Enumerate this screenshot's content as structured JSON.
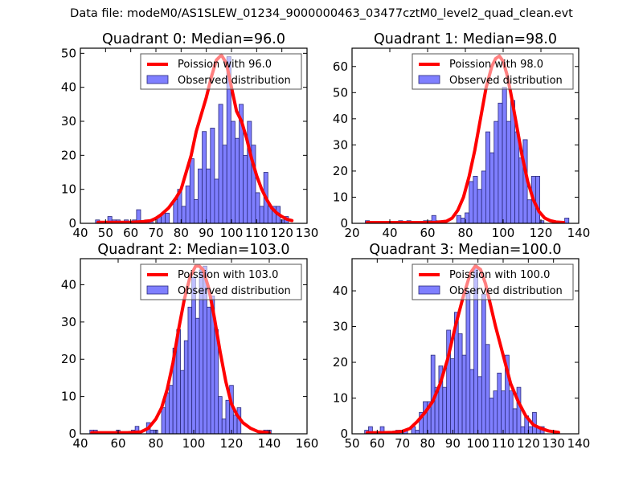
{
  "suptitle": "Data file: modeM0/AS1SLEW_01234_9000000463_03477cztM0_level2_quad_clean.evt",
  "colors": {
    "bar_fill": "#7f7fff",
    "bar_edge": "#2a2a7a",
    "poisson_line": "#ff0000"
  },
  "chart_data": [
    {
      "type": "bar",
      "title": "Quadrant 0: Median=96.0",
      "xlim": [
        40,
        130
      ],
      "ylim": [
        0,
        51.5
      ],
      "xticks": [
        40,
        50,
        60,
        70,
        80,
        90,
        100,
        110,
        120,
        130
      ],
      "yticks": [
        0,
        10,
        20,
        30,
        40,
        50
      ],
      "legend": {
        "placement": "top-right",
        "entries": [
          "Poission with 96.0",
          "Observed distribution"
        ]
      },
      "bin_start": 46,
      "bin_width": 1.63,
      "values": [
        1,
        0,
        0,
        2,
        1,
        1,
        0,
        1,
        0,
        1,
        4,
        0,
        1,
        1,
        0,
        2,
        3,
        3,
        0,
        7,
        10,
        5,
        11,
        19,
        7,
        16,
        27,
        16,
        28,
        13,
        35,
        23,
        49,
        30,
        25,
        35,
        20,
        30,
        23,
        9,
        5,
        15,
        5,
        5,
        5,
        1,
        2
      ],
      "poisson": {
        "mean": 96.0,
        "peak": 49.5,
        "x": [
          47,
          55,
          60,
          65,
          68,
          70,
          72,
          75,
          78,
          80,
          82,
          84,
          86,
          88,
          90,
          92,
          94,
          96,
          98,
          100,
          102,
          104,
          106,
          108,
          110,
          112,
          114,
          116,
          118,
          120,
          122,
          124
        ],
        "y": [
          0.3,
          0.3,
          0.3,
          0.5,
          0.8,
          1.5,
          2.5,
          4.5,
          7.5,
          10,
          15,
          20,
          27,
          32,
          37,
          43,
          48,
          49.5,
          47,
          40,
          33,
          30,
          25,
          19,
          14,
          10,
          7,
          4.5,
          3,
          2,
          1.2,
          0.8
        ]
      }
    },
    {
      "type": "bar",
      "title": "Quadrant 1: Median=98.0",
      "xlim": [
        20,
        140
      ],
      "ylim": [
        0,
        67
      ],
      "xticks": [
        20,
        40,
        60,
        80,
        100,
        120,
        140
      ],
      "yticks": [
        0,
        10,
        20,
        30,
        40,
        50,
        60
      ],
      "legend": {
        "placement": "top-right",
        "entries": [
          "Poission with 98.0",
          "Observed distribution"
        ]
      },
      "bin_start": 27,
      "bin_width": 2.2,
      "values": [
        1,
        0,
        0,
        0,
        0,
        0,
        0,
        0,
        1,
        0,
        1,
        0,
        0,
        0,
        1,
        1,
        3,
        1,
        0,
        0,
        0,
        0,
        3,
        2,
        4,
        16,
        18,
        13,
        20,
        35,
        27,
        39,
        46,
        52,
        39,
        47,
        35,
        25,
        32,
        9,
        18,
        18,
        1,
        0,
        0,
        0,
        0,
        0,
        2
      ],
      "poisson": {
        "mean": 98.0,
        "peak": 64,
        "x": [
          28,
          40,
          50,
          60,
          65,
          70,
          73,
          76,
          79,
          82,
          85,
          88,
          91,
          94,
          96,
          98,
          100,
          102,
          104,
          107,
          110,
          113,
          116,
          119,
          122,
          125,
          128,
          132
        ],
        "y": [
          0.3,
          0.3,
          0.3,
          0.3,
          0.4,
          0.8,
          2,
          5,
          10,
          18,
          28,
          40,
          52,
          60,
          63,
          64,
          62,
          57,
          50,
          38,
          26,
          16,
          9,
          4.5,
          2,
          1,
          0.5,
          0.3
        ]
      }
    },
    {
      "type": "bar",
      "title": "Quadrant 2: Median=103.0",
      "xlim": [
        40,
        160
      ],
      "ylim": [
        0,
        47
      ],
      "xticks": [
        40,
        60,
        80,
        100,
        120,
        140,
        160
      ],
      "yticks": [
        0,
        10,
        20,
        30,
        40
      ],
      "legend": {
        "placement": "top-right",
        "entries": [
          "Poission with 103.0",
          "Observed distribution"
        ]
      },
      "bin_start": 45,
      "bin_width": 2.0,
      "values": [
        1,
        1,
        0,
        0,
        0,
        0,
        0,
        1,
        0,
        0,
        0,
        1,
        2,
        0,
        0,
        3,
        1,
        1,
        0,
        7,
        11,
        13,
        23,
        28,
        17,
        25,
        34,
        42,
        31,
        44,
        45,
        34,
        37,
        28,
        10,
        4,
        9,
        13,
        5,
        7,
        0,
        0,
        0,
        0,
        0,
        0,
        1,
        1
      ],
      "poisson": {
        "mean": 103.0,
        "peak": 45,
        "x": [
          46,
          55,
          65,
          72,
          76,
          80,
          83,
          86,
          89,
          92,
          95,
          98,
          101,
          103,
          105,
          108,
          111,
          114,
          117,
          120,
          123,
          126,
          130,
          134,
          140
        ],
        "y": [
          0.3,
          0.3,
          0.3,
          0.5,
          1.5,
          4,
          7,
          12,
          19,
          28,
          36,
          42,
          45,
          45,
          44,
          39,
          31,
          22,
          14,
          8,
          5,
          3,
          1.5,
          0.6,
          0.3
        ]
      }
    },
    {
      "type": "bar",
      "title": "Quadrant 3: Median=100.0",
      "xlim": [
        50,
        140
      ],
      "ylim": [
        0,
        49
      ],
      "xticks": [
        50,
        60,
        70,
        80,
        90,
        100,
        110,
        120,
        130,
        140
      ],
      "yticks": [
        0,
        10,
        20,
        30,
        40
      ],
      "legend": {
        "placement": "top-right",
        "entries": [
          "Poission with 100.0",
          "Observed distribution"
        ]
      },
      "bin_start": 55,
      "bin_width": 1.55,
      "values": [
        1,
        2,
        0,
        0,
        2,
        0,
        0,
        0,
        1,
        1,
        1,
        0,
        2,
        1,
        6,
        9,
        9,
        22,
        13,
        19,
        13,
        29,
        21,
        34,
        28,
        22,
        40,
        18,
        47,
        16,
        39,
        25,
        10,
        12,
        17,
        12,
        22,
        12,
        7,
        13,
        2,
        5,
        2,
        6,
        2,
        2,
        0
      ],
      "poisson": {
        "mean": 100.0,
        "peak": 47,
        "x": [
          56,
          62,
          66,
          70,
          73,
          76,
          79,
          82,
          85,
          88,
          91,
          94,
          97,
          99,
          101,
          103,
          105,
          107,
          110,
          113,
          116,
          119,
          122,
          125,
          128,
          132
        ],
        "y": [
          0.3,
          0.3,
          0.4,
          0.7,
          1.5,
          3.5,
          6,
          9,
          14,
          21,
          30,
          38,
          45,
          47,
          46,
          42,
          36,
          30,
          22,
          14,
          9,
          5,
          2.5,
          1.5,
          0.8,
          0.4
        ]
      }
    }
  ]
}
